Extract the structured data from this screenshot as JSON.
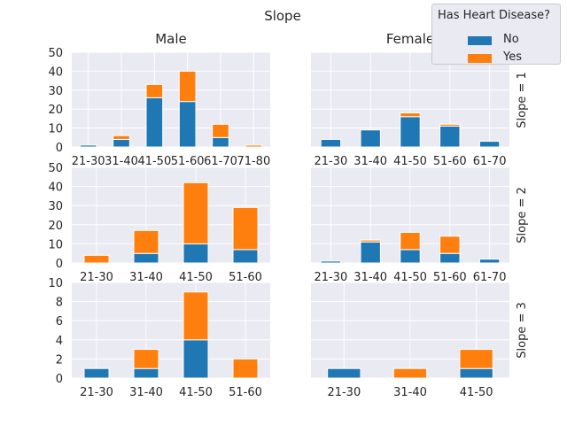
{
  "figure": {
    "title": "Slope",
    "col_titles": [
      "Male",
      "Female"
    ],
    "row_titles": [
      "Slope = 1",
      "Slope = 2",
      "Slope = 3"
    ]
  },
  "legend": {
    "title": "Has Heart Disease?",
    "entries": [
      {
        "label": "No",
        "color": "#1f77b4"
      },
      {
        "label": "Yes",
        "color": "#ff7f0e"
      }
    ]
  },
  "colors": {
    "no": "#1f77b4",
    "yes": "#ff7f0e",
    "panel_bg": "#eaeaf2",
    "grid": "#ffffff"
  },
  "chart_data": [
    {
      "type": "bar",
      "stacked": true,
      "row": 1,
      "col": 1,
      "categories": [
        "21-30",
        "31-40",
        "41-50",
        "51-60",
        "61-70",
        "71-80"
      ],
      "series": [
        {
          "name": "No",
          "values": [
            1,
            4,
            26,
            24,
            5,
            0
          ]
        },
        {
          "name": "Yes",
          "values": [
            0,
            2,
            7,
            16,
            7,
            1
          ]
        }
      ],
      "ylim": [
        0,
        50
      ],
      "yticks": [
        0,
        10,
        20,
        30,
        40,
        50
      ],
      "show_yticks": true,
      "grid": true
    },
    {
      "type": "bar",
      "stacked": true,
      "row": 1,
      "col": 2,
      "categories": [
        "21-30",
        "31-40",
        "41-50",
        "51-60",
        "61-70"
      ],
      "series": [
        {
          "name": "No",
          "values": [
            4,
            9,
            16,
            11,
            3
          ]
        },
        {
          "name": "Yes",
          "values": [
            0,
            0,
            2,
            1,
            0
          ]
        }
      ],
      "ylim": [
        0,
        50
      ],
      "yticks": [
        0,
        10,
        20,
        30,
        40,
        50
      ],
      "show_yticks": false,
      "grid": true
    },
    {
      "type": "bar",
      "stacked": true,
      "row": 2,
      "col": 1,
      "categories": [
        "21-30",
        "31-40",
        "41-50",
        "51-60"
      ],
      "series": [
        {
          "name": "No",
          "values": [
            0,
            5,
            10,
            7
          ]
        },
        {
          "name": "Yes",
          "values": [
            4,
            12,
            32,
            22
          ]
        }
      ],
      "ylim": [
        0,
        50
      ],
      "yticks": [
        0,
        10,
        20,
        30,
        40,
        50
      ],
      "show_yticks": true,
      "grid": true
    },
    {
      "type": "bar",
      "stacked": true,
      "row": 2,
      "col": 2,
      "categories": [
        "21-30",
        "31-40",
        "41-50",
        "51-60",
        "61-70"
      ],
      "series": [
        {
          "name": "No",
          "values": [
            1,
            11,
            7,
            5,
            2
          ]
        },
        {
          "name": "Yes",
          "values": [
            0,
            1,
            9,
            9,
            0
          ]
        }
      ],
      "ylim": [
        0,
        50
      ],
      "yticks": [
        0,
        10,
        20,
        30,
        40,
        50
      ],
      "show_yticks": false,
      "grid": true
    },
    {
      "type": "bar",
      "stacked": true,
      "row": 3,
      "col": 1,
      "categories": [
        "21-30",
        "31-40",
        "41-50",
        "51-60"
      ],
      "series": [
        {
          "name": "No",
          "values": [
            1,
            1,
            4,
            0
          ]
        },
        {
          "name": "Yes",
          "values": [
            0,
            2,
            5,
            2
          ]
        }
      ],
      "ylim": [
        0,
        10
      ],
      "yticks": [
        0,
        2,
        4,
        6,
        8,
        10
      ],
      "show_yticks": true,
      "grid": true
    },
    {
      "type": "bar",
      "stacked": true,
      "row": 3,
      "col": 2,
      "categories": [
        "21-30",
        "31-40",
        "41-50"
      ],
      "series": [
        {
          "name": "No",
          "values": [
            1,
            0,
            1
          ]
        },
        {
          "name": "Yes",
          "values": [
            0,
            1,
            2
          ]
        }
      ],
      "ylim": [
        0,
        10
      ],
      "yticks": [
        0,
        2,
        4,
        6,
        8,
        10
      ],
      "show_yticks": false,
      "grid": true
    }
  ]
}
